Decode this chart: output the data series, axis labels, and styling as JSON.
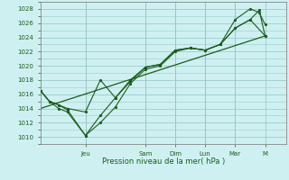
{
  "xlabel": "Pression niveau de la mer( hPa )",
  "ylim": [
    1009,
    1029
  ],
  "yticks": [
    1010,
    1012,
    1014,
    1016,
    1018,
    1020,
    1022,
    1024,
    1026,
    1028
  ],
  "bg_color": "#cff0f0",
  "grid_color": "#99cccc",
  "line_color": "#1a5c1a",
  "day_labels": [
    "Jeu",
    "Sam",
    "Dim",
    "Lun",
    "Mar",
    "M"
  ],
  "day_positions": [
    1.5,
    3.5,
    4.5,
    5.5,
    6.5,
    7.5
  ],
  "xlim": [
    0,
    8.2
  ],
  "series1_x": [
    0.0,
    0.3,
    0.6,
    0.9,
    1.5,
    2.0,
    2.5,
    3.0,
    3.5,
    4.0,
    4.5,
    5.0,
    5.5,
    6.0,
    6.5,
    7.0,
    7.5
  ],
  "series1_y": [
    1016.5,
    1015.0,
    1014.5,
    1014.0,
    1013.5,
    1018.0,
    1015.5,
    1018.0,
    1019.8,
    1020.2,
    1022.2,
    1022.5,
    1022.2,
    1023.0,
    1025.3,
    1026.5,
    1024.2
  ],
  "series2_x": [
    0.0,
    0.3,
    0.6,
    0.9,
    1.5,
    2.0,
    2.5,
    3.0,
    3.5,
    4.0,
    4.5,
    5.0,
    5.5,
    6.0,
    6.5,
    7.0,
    7.3,
    7.5
  ],
  "series2_y": [
    1016.5,
    1015.0,
    1014.5,
    1013.8,
    1010.2,
    1013.0,
    1015.5,
    1017.8,
    1019.8,
    1020.2,
    1022.2,
    1022.5,
    1022.2,
    1023.0,
    1025.3,
    1026.5,
    1027.8,
    1024.2
  ],
  "series3_x": [
    0.0,
    0.3,
    0.6,
    0.9,
    1.5,
    2.0,
    2.5,
    3.0,
    3.5,
    4.0,
    4.5,
    5.0,
    5.5,
    6.0,
    6.5,
    7.0,
    7.3,
    7.5
  ],
  "series3_y": [
    1016.5,
    1015.0,
    1014.0,
    1013.5,
    1010.2,
    1012.0,
    1014.2,
    1017.5,
    1019.5,
    1020.0,
    1022.0,
    1022.5,
    1022.2,
    1023.0,
    1026.5,
    1028.0,
    1027.5,
    1025.8
  ],
  "trend_x": [
    0.0,
    7.5
  ],
  "trend_y": [
    1014.0,
    1024.2
  ]
}
